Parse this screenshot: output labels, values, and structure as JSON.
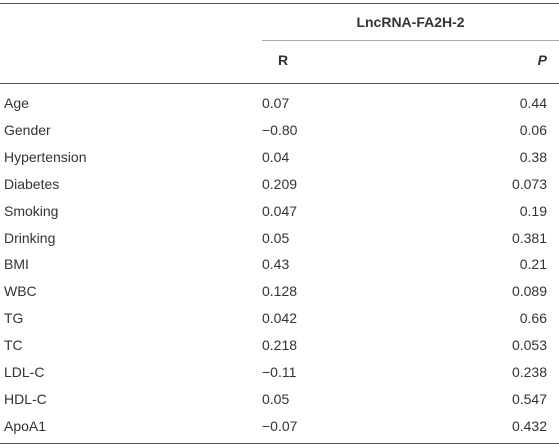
{
  "table": {
    "header": {
      "group": "LncRNA-FA2H-2",
      "columns": [
        "R",
        "P"
      ]
    },
    "rows": [
      [
        "Age",
        "0.07",
        "0.44"
      ],
      [
        "Gender",
        "−0.80",
        "0.06"
      ],
      [
        "Hypertension",
        "0.04",
        "0.38"
      ],
      [
        "Diabetes",
        "0.209",
        "0.073"
      ],
      [
        "Smoking",
        "0.047",
        "0.19"
      ],
      [
        "Drinking",
        "0.05",
        "0.381"
      ],
      [
        "BMI",
        "0.43",
        "0.21"
      ],
      [
        "WBC",
        "0.128",
        "0.089"
      ],
      [
        "TG",
        "0.042",
        "0.66"
      ],
      [
        "TC",
        "0.218",
        "0.053"
      ],
      [
        "LDL-C",
        "−0.11",
        "0.238"
      ],
      [
        "HDL-C",
        "0.05",
        "0.547"
      ],
      [
        "ApoA1",
        "−0.07",
        "0.432"
      ]
    ]
  }
}
